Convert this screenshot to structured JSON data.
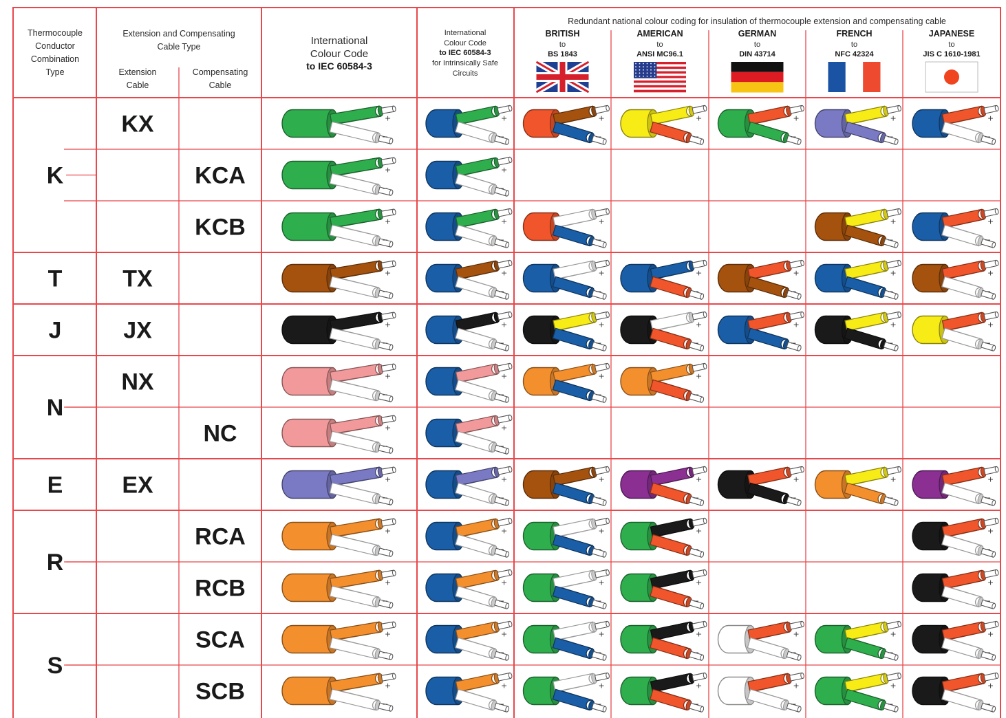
{
  "header": {
    "col_type": [
      "Thermocouple",
      "Conductor",
      "Combination",
      "Type"
    ],
    "col_ext_group": [
      "Extension and Compensating",
      "Cable Type"
    ],
    "col_ext": [
      "Extension",
      "Cable"
    ],
    "col_comp": [
      "Compensating",
      "Cable"
    ],
    "col_iec": [
      "International",
      "Colour Code",
      "to IEC 60584-3"
    ],
    "col_is": [
      "International",
      "Colour Code",
      "to IEC 60584-3",
      "for Intrinsically Safe",
      "Circuits"
    ],
    "national_title": "Redundant national colour coding for insulation of thermocouple extension and compensating cable",
    "countries": [
      {
        "name": "BRITISH",
        "to": "to",
        "std": "BS 1843",
        "flag": "uk-flag"
      },
      {
        "name": "AMERICAN",
        "to": "to",
        "std": "ANSI MC96.1",
        "flag": "us-flag"
      },
      {
        "name": "GERMAN",
        "to": "to",
        "std": "DIN 43714",
        "flag": "germany-flag"
      },
      {
        "name": "FRENCH",
        "to": "to",
        "std": "NFC 42324",
        "flag": "france-flag"
      },
      {
        "name": "JAPANESE",
        "to": "to",
        "std": "JIS C 1610-1981",
        "flag": "japan-flag"
      }
    ]
  },
  "colors": {
    "grid": "#e8474c",
    "green": "#2fae4e",
    "white": "#ffffff",
    "blue": "#1a5ea8",
    "red": "#f0552b",
    "brown": "#a5520f",
    "yellow": "#f8ec16",
    "violet": "#7a7ac4",
    "black": "#1a1a1a",
    "pink": "#f29a9b",
    "orange": "#f48f2e",
    "purple": "#8b2f93"
  },
  "signs": {
    "plus": "+",
    "minus": "−"
  },
  "groups": [
    {
      "type": "K",
      "rows": [
        0,
        1,
        2
      ]
    },
    {
      "type": "T",
      "rows": [
        3
      ]
    },
    {
      "type": "J",
      "rows": [
        4
      ]
    },
    {
      "type": "N",
      "rows": [
        5,
        6
      ]
    },
    {
      "type": "E",
      "rows": [
        7
      ]
    },
    {
      "type": "R",
      "rows": [
        8,
        9
      ]
    },
    {
      "type": "S",
      "rows": [
        10,
        11
      ]
    }
  ],
  "rows": [
    {
      "ext": "KX",
      "comp": "",
      "iec": [
        "green",
        "green",
        "white"
      ],
      "is": [
        "blue",
        "green",
        "white"
      ],
      "national": [
        [
          "red",
          "brown",
          "blue"
        ],
        [
          "yellow",
          "yellow",
          "red"
        ],
        [
          "green",
          "red",
          "green"
        ],
        [
          "violet",
          "yellow",
          "violet"
        ],
        [
          "blue",
          "red",
          "white"
        ]
      ]
    },
    {
      "ext": "",
      "comp": "KCA",
      "iec": [
        "green",
        "green",
        "white"
      ],
      "is": [
        "blue",
        "green",
        "white"
      ],
      "national": [
        null,
        null,
        null,
        null,
        null
      ]
    },
    {
      "ext": "",
      "comp": "KCB",
      "iec": [
        "green",
        "green",
        "white"
      ],
      "is": [
        "blue",
        "green",
        "white"
      ],
      "national": [
        [
          "red",
          "white",
          "blue"
        ],
        null,
        null,
        [
          "brown",
          "yellow",
          "brown"
        ],
        [
          "blue",
          "red",
          "white"
        ]
      ]
    },
    {
      "ext": "TX",
      "comp": "",
      "iec": [
        "brown",
        "brown",
        "white"
      ],
      "is": [
        "blue",
        "brown",
        "white"
      ],
      "national": [
        [
          "blue",
          "white",
          "blue"
        ],
        [
          "blue",
          "blue",
          "red"
        ],
        [
          "brown",
          "red",
          "brown"
        ],
        [
          "blue",
          "yellow",
          "blue"
        ],
        [
          "brown",
          "red",
          "white"
        ]
      ]
    },
    {
      "ext": "JX",
      "comp": "",
      "iec": [
        "black",
        "black",
        "white"
      ],
      "is": [
        "blue",
        "black",
        "white"
      ],
      "national": [
        [
          "black",
          "yellow",
          "blue"
        ],
        [
          "black",
          "white",
          "red"
        ],
        [
          "blue",
          "red",
          "blue"
        ],
        [
          "black",
          "yellow",
          "black"
        ],
        [
          "yellow",
          "red",
          "white"
        ]
      ]
    },
    {
      "ext": "NX",
      "comp": "",
      "iec": [
        "pink",
        "pink",
        "white"
      ],
      "is": [
        "blue",
        "pink",
        "white"
      ],
      "national": [
        [
          "orange",
          "orange",
          "blue"
        ],
        [
          "orange",
          "orange",
          "red"
        ],
        null,
        null,
        null
      ]
    },
    {
      "ext": "",
      "comp": "NC",
      "iec": [
        "pink",
        "pink",
        "white"
      ],
      "is": [
        "blue",
        "pink",
        "white"
      ],
      "national": [
        null,
        null,
        null,
        null,
        null
      ]
    },
    {
      "ext": "EX",
      "comp": "",
      "iec": [
        "violet",
        "violet",
        "white"
      ],
      "is": [
        "blue",
        "violet",
        "white"
      ],
      "national": [
        [
          "brown",
          "brown",
          "blue"
        ],
        [
          "purple",
          "purple",
          "red"
        ],
        [
          "black",
          "red",
          "black"
        ],
        [
          "orange",
          "yellow",
          "orange"
        ],
        [
          "purple",
          "red",
          "white"
        ]
      ]
    },
    {
      "ext": "",
      "comp": "RCA",
      "iec": [
        "orange",
        "orange",
        "white"
      ],
      "is": [
        "blue",
        "orange",
        "white"
      ],
      "national": [
        [
          "green",
          "white",
          "blue"
        ],
        [
          "green",
          "black",
          "red"
        ],
        null,
        null,
        [
          "black",
          "red",
          "white"
        ]
      ]
    },
    {
      "ext": "",
      "comp": "RCB",
      "iec": [
        "orange",
        "orange",
        "white"
      ],
      "is": [
        "blue",
        "orange",
        "white"
      ],
      "national": [
        [
          "green",
          "white",
          "blue"
        ],
        [
          "green",
          "black",
          "red"
        ],
        null,
        null,
        [
          "black",
          "red",
          "white"
        ]
      ]
    },
    {
      "ext": "",
      "comp": "SCA",
      "iec": [
        "orange",
        "orange",
        "white"
      ],
      "is": [
        "blue",
        "orange",
        "white"
      ],
      "national": [
        [
          "green",
          "white",
          "blue"
        ],
        [
          "green",
          "black",
          "red"
        ],
        [
          "white",
          "red",
          "white"
        ],
        [
          "green",
          "yellow",
          "green"
        ],
        [
          "black",
          "red",
          "white"
        ]
      ]
    },
    {
      "ext": "",
      "comp": "SCB",
      "iec": [
        "orange",
        "orange",
        "white"
      ],
      "is": [
        "blue",
        "orange",
        "white"
      ],
      "national": [
        [
          "green",
          "white",
          "blue"
        ],
        [
          "green",
          "black",
          "red"
        ],
        [
          "white",
          "red",
          "white"
        ],
        [
          "green",
          "yellow",
          "green"
        ],
        [
          "black",
          "red",
          "white"
        ]
      ]
    }
  ]
}
